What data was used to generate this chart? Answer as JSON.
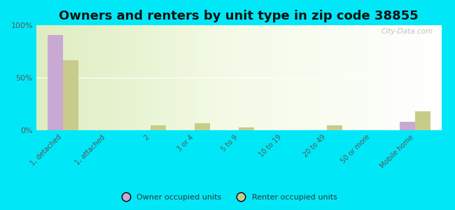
{
  "title": "Owners and renters by unit type in zip code 38855",
  "categories": [
    "1, detached",
    "1, attached",
    "2",
    "3 or 4",
    "5 to 9",
    "10 to 19",
    "20 to 49",
    "50 or more",
    "Mobile home"
  ],
  "owner_values": [
    91,
    0,
    0,
    0,
    0,
    0,
    0,
    0,
    8
  ],
  "renter_values": [
    67,
    0,
    5,
    7,
    3,
    0,
    5,
    0,
    18
  ],
  "owner_color": "#c9a8d4",
  "renter_color": "#c8cc8a",
  "background_color": "#00e8f8",
  "ylim": [
    0,
    100
  ],
  "yticks": [
    0,
    50,
    100
  ],
  "ytick_labels": [
    "0%",
    "50%",
    "100%"
  ],
  "bar_width": 0.35,
  "title_fontsize": 13,
  "legend_labels": [
    "Owner occupied units",
    "Renter occupied units"
  ],
  "watermark": "City-Data.com"
}
